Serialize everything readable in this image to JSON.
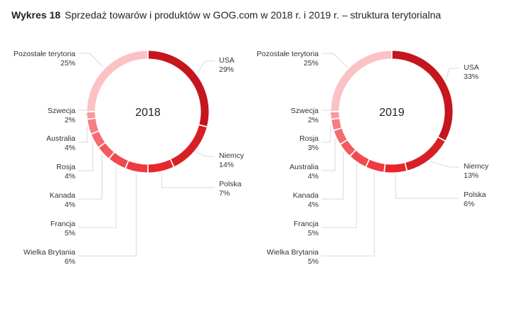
{
  "title": {
    "label": "Wykres 18",
    "text": "Sprzedaż towarów i produktów w GOG.com w 2018 r. i 2019 r. – struktura terytorialna"
  },
  "chart_data": [
    {
      "type": "pie",
      "variant": "donut",
      "center_label": "2018",
      "categories": [
        "USA",
        "Niemcy",
        "Polska",
        "Wielka Brytania",
        "Francja",
        "Kanada",
        "Rosja",
        "Australia",
        "Szwecja",
        "Pozostałe terytoria"
      ],
      "values": [
        29,
        14,
        7,
        6,
        5,
        4,
        4,
        4,
        2,
        25
      ],
      "value_labels": [
        "29%",
        "14%",
        "7%",
        "6%",
        "5%",
        "4%",
        "4%",
        "4%",
        "2%",
        "25%"
      ],
      "colors": [
        "#c5161d",
        "#d81f26",
        "#e9262c",
        "#ee3a40",
        "#f04a4f",
        "#f25a5e",
        "#f46b6f",
        "#f67e81",
        "#f89a9c",
        "#fbc2c4"
      ]
    },
    {
      "type": "pie",
      "variant": "donut",
      "center_label": "2019",
      "categories": [
        "USA",
        "Niemcy",
        "Polska",
        "Wielka Brytania",
        "Francja",
        "Kanada",
        "Australia",
        "Rosja",
        "Szwecja",
        "Pozostałe terytoria"
      ],
      "values": [
        33,
        13,
        6,
        5,
        5,
        4,
        4,
        3,
        2,
        25
      ],
      "value_labels": [
        "33%",
        "13%",
        "6%",
        "5%",
        "5%",
        "4%",
        "4%",
        "3%",
        "2%",
        "25%"
      ],
      "colors": [
        "#c5161d",
        "#d81f26",
        "#e9262c",
        "#ee3a40",
        "#f04a4f",
        "#f25a5e",
        "#f46b6f",
        "#f67e81",
        "#f89a9c",
        "#fbc2c4"
      ]
    }
  ]
}
